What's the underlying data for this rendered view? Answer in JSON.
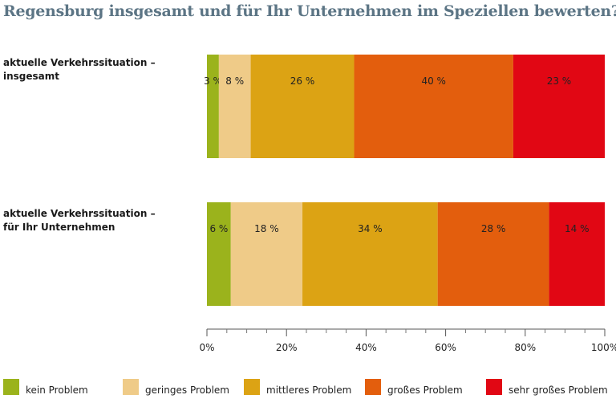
{
  "chart_data": {
    "type": "bar",
    "orientation": "horizontal",
    "stacked": true,
    "title": "Regensburg insgesamt und für Ihr Unternehmen im Speziellen bewerten?",
    "categories": [
      {
        "line1": "aktuelle  Verkehrssituation  –",
        "line2": "insgesamt"
      },
      {
        "line1": "aktuelle  Verkehrssituation  –",
        "line2": "für Ihr Unternehmen"
      }
    ],
    "series": [
      {
        "name": "kein Problem",
        "color": "#9bb31c",
        "values": [
          3,
          6
        ],
        "labels": [
          "3 %",
          "6 %"
        ]
      },
      {
        "name": "geringes Problem",
        "color": "#efcb88",
        "values": [
          8,
          18
        ],
        "labels": [
          "8 %",
          "18 %"
        ]
      },
      {
        "name": "mittleres Problem",
        "color": "#dca314",
        "values": [
          26,
          34
        ],
        "labels": [
          "26 %",
          "34 %"
        ]
      },
      {
        "name": "großes Problem",
        "color": "#e35e0d",
        "values": [
          40,
          28
        ],
        "labels": [
          "40 %",
          "28 %"
        ]
      },
      {
        "name": "sehr großes Problem",
        "color": "#e10714",
        "values": [
          23,
          14
        ],
        "labels": [
          "23 %",
          "14 %"
        ]
      }
    ],
    "xlim": [
      0,
      100
    ],
    "xticks": [
      0,
      20,
      40,
      60,
      80,
      100
    ],
    "xtick_labels": [
      "0%",
      "20%",
      "40%",
      "60%",
      "80%",
      "100%"
    ],
    "grid": false,
    "legend_position": "bottom"
  }
}
